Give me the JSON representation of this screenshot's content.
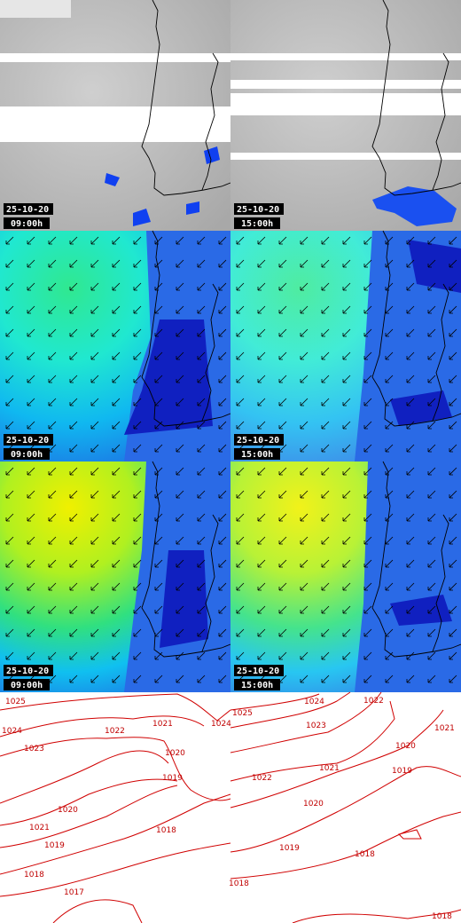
{
  "panels": [
    {
      "date": "25-10-20",
      "time": "09:00h"
    },
    {
      "date": "25-10-20",
      "time": "15:00h"
    },
    {
      "date": "25-10-20",
      "time": "09:00h"
    },
    {
      "date": "25-10-20",
      "time": "15:00h"
    },
    {
      "date": "25-10-20",
      "time": "09:00h"
    },
    {
      "date": "25-10-20",
      "time": "15:00h"
    }
  ],
  "isobars": {
    "left": [
      "1025",
      "1024",
      "1023",
      "1022",
      "1021",
      "1020",
      "1019",
      "1021",
      "1020",
      "1019",
      "1018",
      "1018",
      "1017",
      "1024"
    ],
    "right": [
      "1025",
      "1024",
      "1023",
      "1022",
      "1021",
      "1020",
      "1022",
      "1021",
      "1019",
      "1020",
      "1019",
      "1018",
      "1018",
      "1018"
    ]
  }
}
